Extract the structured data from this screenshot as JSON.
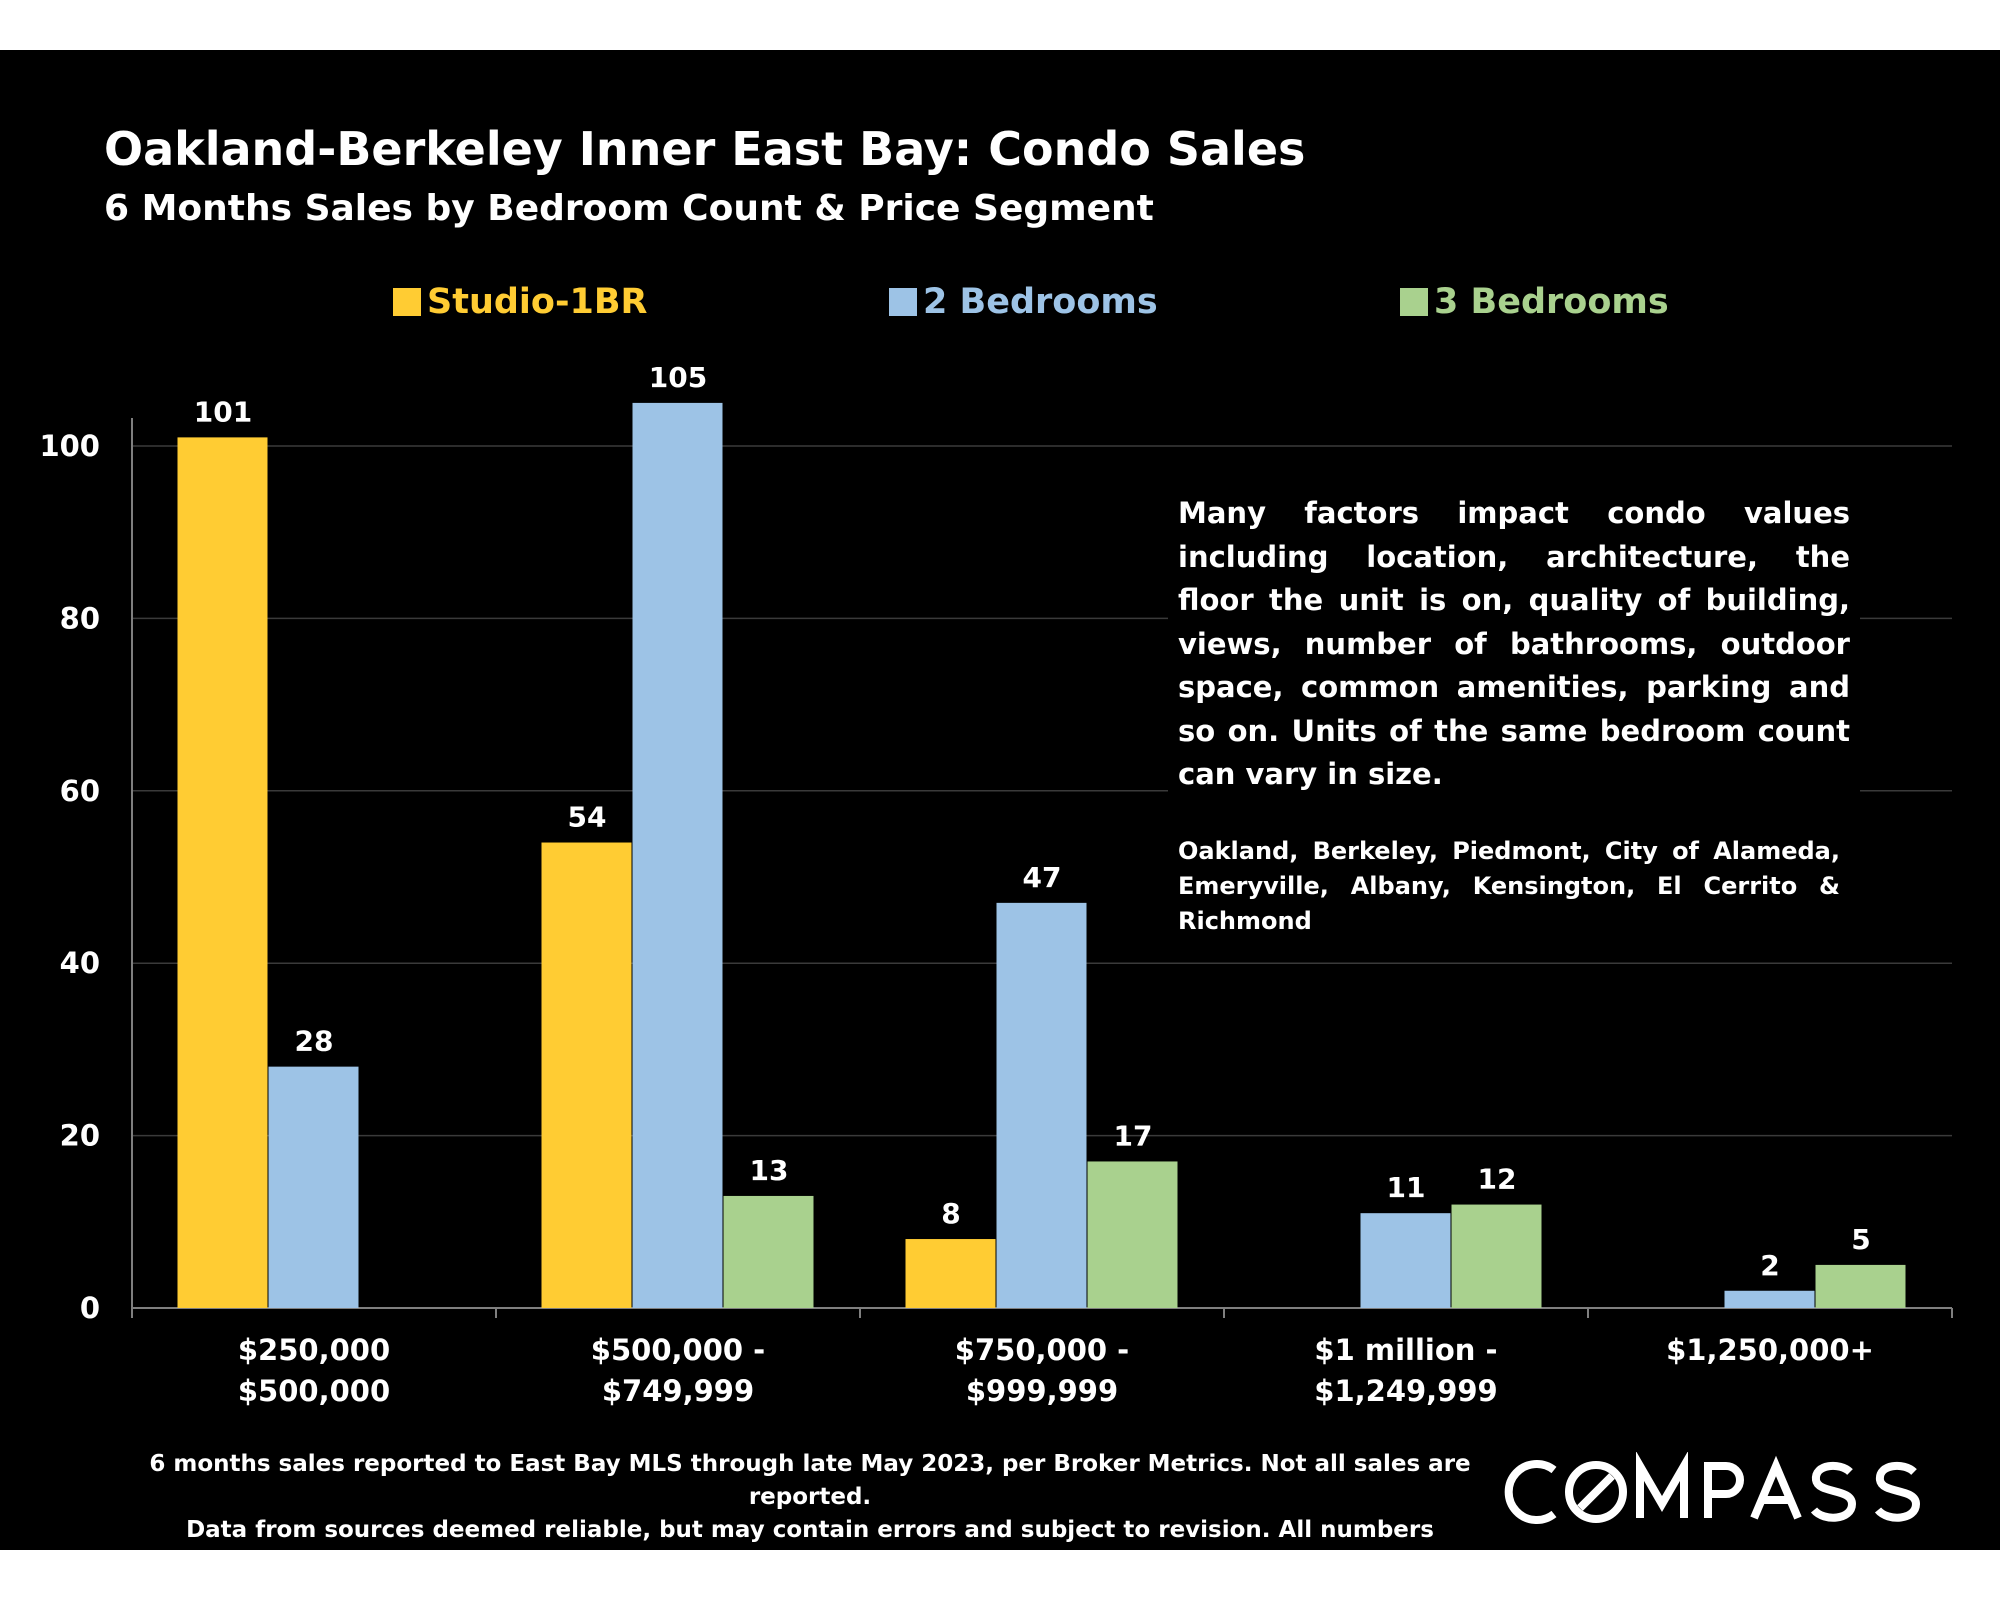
{
  "header": {
    "title": "Oakland-Berkeley Inner East Bay: Condo  Sales",
    "subtitle": "6 Months Sales by Bedroom Count & Price Segment"
  },
  "colors": {
    "background": "#000000",
    "studio": "#FFCC33",
    "two_bed": "#9DC3E6",
    "three_bed": "#A9D18E"
  },
  "chart_data": {
    "type": "bar",
    "title": "Oakland-Berkeley Inner East Bay: Condo  Sales",
    "subtitle": "6 Months Sales by Bedroom Count & Price Segment",
    "categories": [
      "$250,000\n$500,000",
      "$500,000 -\n$749,999",
      "$750,000 -\n$999,999",
      "$1 million -\n$1,249,999",
      "$1,250,000+"
    ],
    "series": [
      {
        "name": "Studio-1BR",
        "color": "#FFCC33",
        "values": [
          101,
          54,
          8,
          null,
          null
        ]
      },
      {
        "name": "2 Bedrooms",
        "color": "#9DC3E6",
        "values": [
          28,
          105,
          47,
          11,
          2
        ]
      },
      {
        "name": "3 Bedrooms",
        "color": "#A9D18E",
        "values": [
          null,
          13,
          17,
          12,
          5
        ]
      }
    ],
    "y_ticks": [
      0,
      20,
      40,
      60,
      80,
      100
    ],
    "ylim": [
      0,
      110
    ],
    "grid": true,
    "legend_position": "top",
    "data_labels": true
  },
  "annotation": {
    "note": "Many factors impact condo values including location, architecture, the floor the unit is on, quality of building, views, number of bathrooms, outdoor space, common amenities, parking and so on. Units of the same bedroom count can vary in size.",
    "areas": "Oakland, Berkeley, Piedmont, City of Alameda, Emeryville, Albany, Kensington, El Cerrito & Richmond"
  },
  "footer": {
    "line1": "6 months sales reported to East Bay MLS through late May 2023, per Broker Metrics. Not all sales are reported.",
    "line2": "Data from sources deemed reliable, but may contain errors and subject to revision. All numbers approximate.",
    "logo_text": "COMPASS"
  }
}
